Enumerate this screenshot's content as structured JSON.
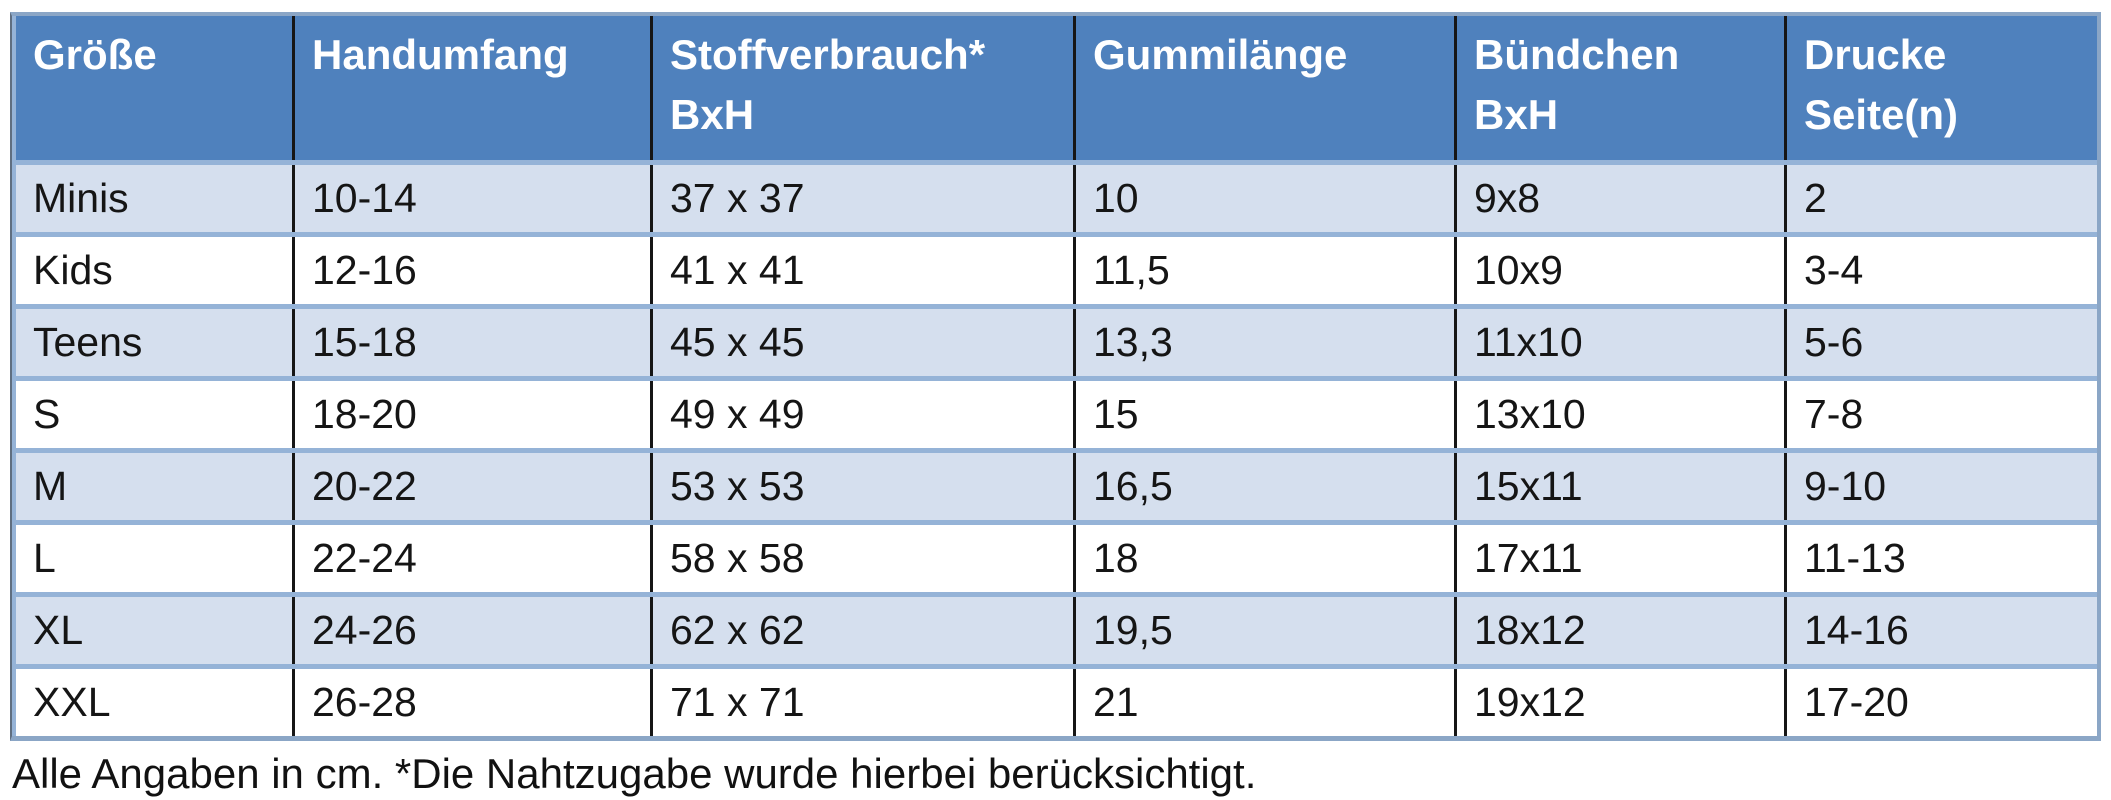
{
  "table": {
    "columns": [
      {
        "key": "groesse",
        "label": "Größe",
        "sub": ""
      },
      {
        "key": "handumfang",
        "label": "Handumfang",
        "sub": ""
      },
      {
        "key": "stoffverbrauch",
        "label": "Stoffverbrauch*",
        "sub": "BxH"
      },
      {
        "key": "gummilaenge",
        "label": "Gummilänge",
        "sub": ""
      },
      {
        "key": "buendchen",
        "label": "Bündchen",
        "sub": "BxH"
      },
      {
        "key": "drucke",
        "label": "Drucke",
        "sub": "Seite(n)"
      }
    ],
    "rows": [
      [
        "Minis",
        "10-14",
        "37 x 37",
        "10",
        "9x8",
        "2"
      ],
      [
        "Kids",
        "12-16",
        "41 x 41",
        "11,5",
        "10x9",
        "3-4"
      ],
      [
        "Teens",
        "15-18",
        "45 x 45",
        "13,3",
        "11x10",
        "5-6"
      ],
      [
        "S",
        "18-20",
        "49 x 49",
        "15",
        "13x10",
        "7-8"
      ],
      [
        "M",
        "20-22",
        "53 x 53",
        "16,5",
        "15x11",
        "9-10"
      ],
      [
        "L",
        "22-24",
        "58 x 58",
        "18",
        "17x11",
        "11-13"
      ],
      [
        "XL",
        "24-26",
        "62 x 62",
        "19,5",
        "18x12",
        "14-16"
      ],
      [
        "XXL",
        "26-28",
        "71 x 71",
        "21",
        "19x12",
        "17-20"
      ]
    ]
  },
  "footnote": "Alle Angaben in cm. *Die Nahtzugabe wurde hierbei berücksichtigt.",
  "colors": {
    "header_bg": "#4f81bd",
    "header_text": "#ffffff",
    "row_alt_bg": "#d5dfee",
    "row_bg": "#ffffff",
    "row_separator": "#95b3d7",
    "outer_border": "#8ba6c6",
    "column_line": "#161616",
    "body_text": "#151515"
  }
}
